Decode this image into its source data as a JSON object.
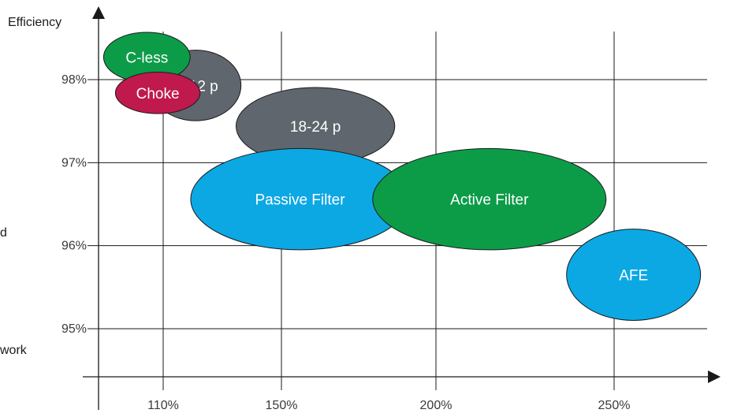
{
  "chart_data": {
    "type": "bubble",
    "ylabel": "Efficiency",
    "xlabel": "",
    "x_ticks": [
      "110%",
      "150%",
      "200%",
      "250%"
    ],
    "y_ticks": [
      "95%",
      "96%",
      "97%",
      "98%"
    ],
    "grid": true,
    "bubbles": [
      {
        "label": "12 p",
        "x": 121,
        "y": 97.93,
        "w": 31,
        "h": 0.85,
        "color": "#5f666d"
      },
      {
        "label": "C-less",
        "x": 104,
        "y": 98.27,
        "w": 31,
        "h": 0.6,
        "color": "#0c9c48"
      },
      {
        "label": "Choke",
        "x": 108,
        "y": 97.84,
        "w": 30,
        "h": 0.5,
        "color": "#c0194e"
      },
      {
        "label": "18-24 p",
        "x": 161,
        "y": 97.44,
        "w": 52,
        "h": 0.93,
        "color": "#5f666d"
      },
      {
        "label": "Passive Filter",
        "x": 156,
        "y": 96.56,
        "w": 72,
        "h": 1.22,
        "color": "#0ca8e4"
      },
      {
        "label": "Active Filter",
        "x": 215,
        "y": 96.56,
        "w": 68,
        "h": 1.22,
        "color": "#0c9c48"
      },
      {
        "label": "AFE",
        "x": 257,
        "y": 95.65,
        "w": 44,
        "h": 1.1,
        "color": "#0ca8e4"
      }
    ]
  },
  "fragments": {
    "left_edge_1": "d",
    "left_edge_2": "work"
  },
  "colors": {
    "grid": "#1a1a1a",
    "axis": "#1a1a1a",
    "bubble_outline": "#1a1a1a"
  }
}
